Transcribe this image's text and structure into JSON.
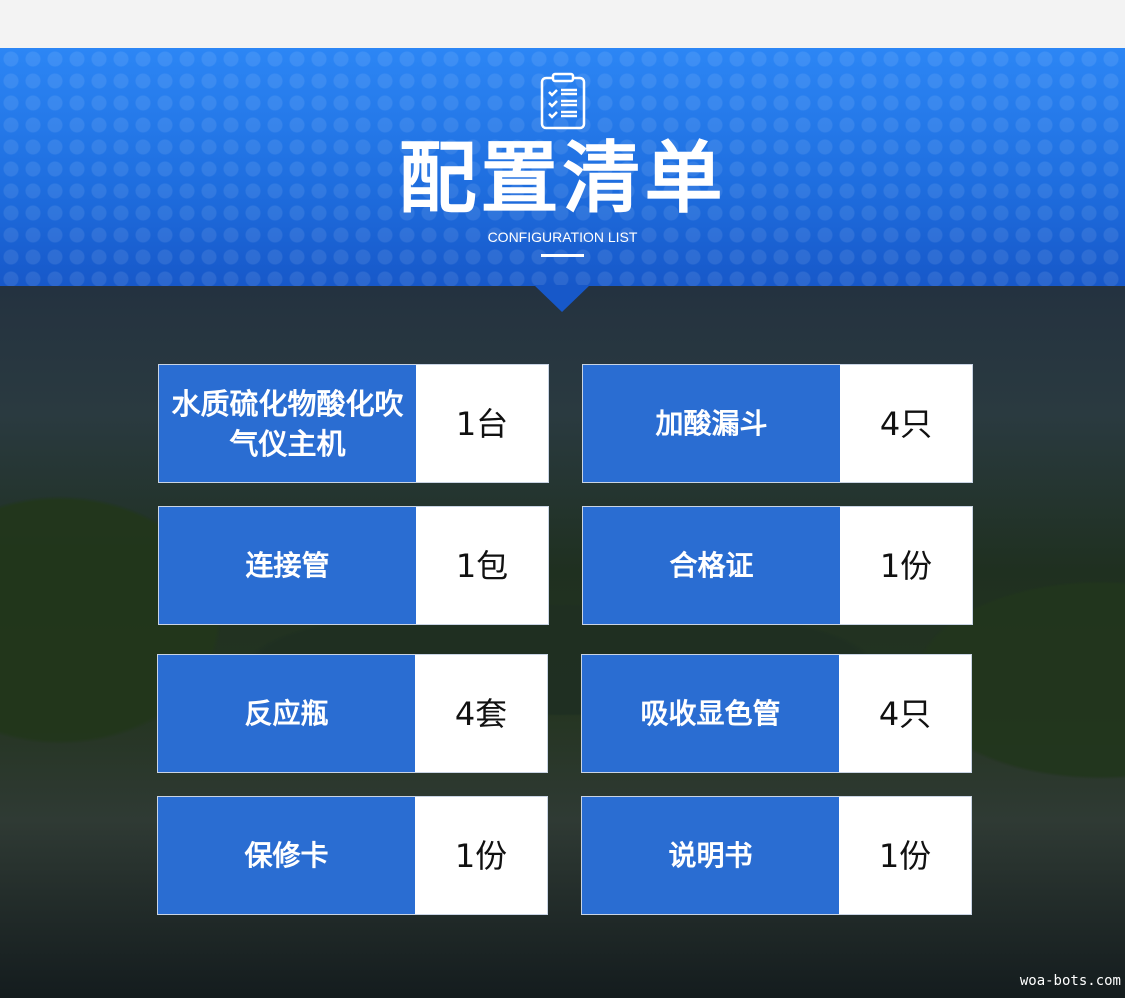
{
  "header": {
    "title": "配置清单",
    "subtitle": "CONFIGURATION LIST",
    "icon": "clipboard-checklist-icon"
  },
  "colors": {
    "banner": "#2c86f5",
    "card_label": "#2a6dd2",
    "background": "#1c2733"
  },
  "items": [
    {
      "name": "水质硫化物酸化吹气仪主机",
      "qty": "1台"
    },
    {
      "name": "加酸漏斗",
      "qty": "4只"
    },
    {
      "name": "连接管",
      "qty": "1包"
    },
    {
      "name": "合格证",
      "qty": "1份"
    },
    {
      "name": "反应瓶",
      "qty": "4套"
    },
    {
      "name": "吸收显色管",
      "qty": "4只"
    },
    {
      "name": "保修卡",
      "qty": "1份"
    },
    {
      "name": "说明书",
      "qty": "1份"
    }
  ],
  "watermark": "woa-bots.com"
}
